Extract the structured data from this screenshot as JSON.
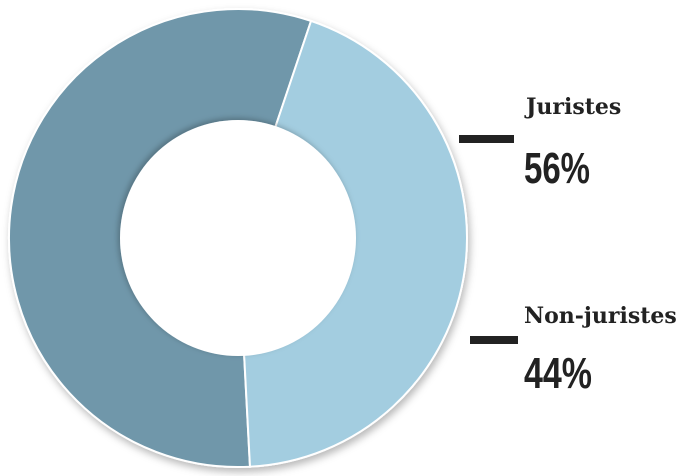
{
  "chart_data": {
    "type": "pie",
    "title": "",
    "categories": [
      "Juristes",
      "Non-juristes"
    ],
    "values": [
      56,
      44
    ],
    "labels": [
      "56%",
      "44%"
    ],
    "colors": [
      "#6f97aa",
      "#a3cde0"
    ],
    "legend": "right",
    "grid": false
  },
  "colors": {
    "legend_bar": "#222222",
    "slice_border": "#ffffff"
  }
}
